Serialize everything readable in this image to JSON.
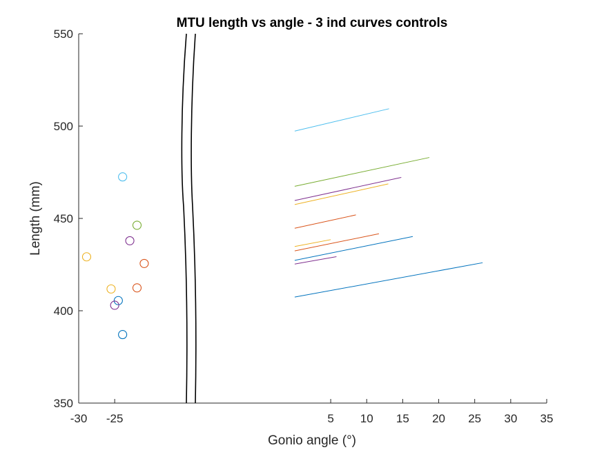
{
  "chart_data": {
    "type": "scatter",
    "title": "MTU length vs angle - 3 ind curves controls",
    "xlabel": "Gonio angle (°)",
    "ylabel": "Length (mm)",
    "xlim": [
      -30,
      35
    ],
    "ylim": [
      350,
      550
    ],
    "xticks_left": [
      "-30",
      "-25"
    ],
    "xticks_right": [
      "5",
      "10",
      "15",
      "20",
      "25",
      "30",
      "35"
    ],
    "yticks": [
      "350",
      "400",
      "450",
      "500",
      "550"
    ],
    "axis_break": "between -25 and 0 on the x-axis",
    "grid": false,
    "legend": "none",
    "points": [
      {
        "x": -23.9,
        "y": 472.5,
        "color": "#4DBEEE"
      },
      {
        "x": -21.9,
        "y": 446.3,
        "color": "#77AC30"
      },
      {
        "x": -22.9,
        "y": 437.9,
        "color": "#7E2F8E"
      },
      {
        "x": -28.9,
        "y": 429.2,
        "color": "#EDB120"
      },
      {
        "x": -20.9,
        "y": 425.6,
        "color": "#D95319"
      },
      {
        "x": -25.5,
        "y": 411.8,
        "color": "#EDB120"
      },
      {
        "x": -21.9,
        "y": 412.4,
        "color": "#D95319"
      },
      {
        "x": -24.5,
        "y": 405.5,
        "color": "#0072BD"
      },
      {
        "x": -25.0,
        "y": 403.0,
        "color": "#7E2F8E"
      },
      {
        "x": -23.9,
        "y": 387.1,
        "color": "#0072BD"
      }
    ],
    "segments": [
      {
        "x": [
          0.0,
          13.1
        ],
        "y": [
          497.3,
          509.4
        ],
        "color": "#4DBEEE"
      },
      {
        "x": [
          0.0,
          18.7
        ],
        "y": [
          467.4,
          483.0
        ],
        "color": "#77AC30"
      },
      {
        "x": [
          0.0,
          14.8
        ],
        "y": [
          459.7,
          472.2
        ],
        "color": "#7E2F8E"
      },
      {
        "x": [
          0.0,
          13.0
        ],
        "y": [
          457.5,
          468.7
        ],
        "color": "#EDB120"
      },
      {
        "x": [
          0.0,
          8.5
        ],
        "y": [
          444.7,
          451.9
        ],
        "color": "#D95319"
      },
      {
        "x": [
          0.0,
          11.7
        ],
        "y": [
          432.4,
          441.7
        ],
        "color": "#D95319"
      },
      {
        "x": [
          0.0,
          5.0
        ],
        "y": [
          434.8,
          438.5
        ],
        "color": "#EDB120"
      },
      {
        "x": [
          0.0,
          16.4
        ],
        "y": [
          427.3,
          440.2
        ],
        "color": "#0072BD"
      },
      {
        "x": [
          0.0,
          5.8
        ],
        "y": [
          425.3,
          429.3
        ],
        "color": "#7E2F8E"
      },
      {
        "x": [
          0.0,
          26.1
        ],
        "y": [
          407.4,
          426.0
        ],
        "color": "#0072BD"
      }
    ]
  }
}
